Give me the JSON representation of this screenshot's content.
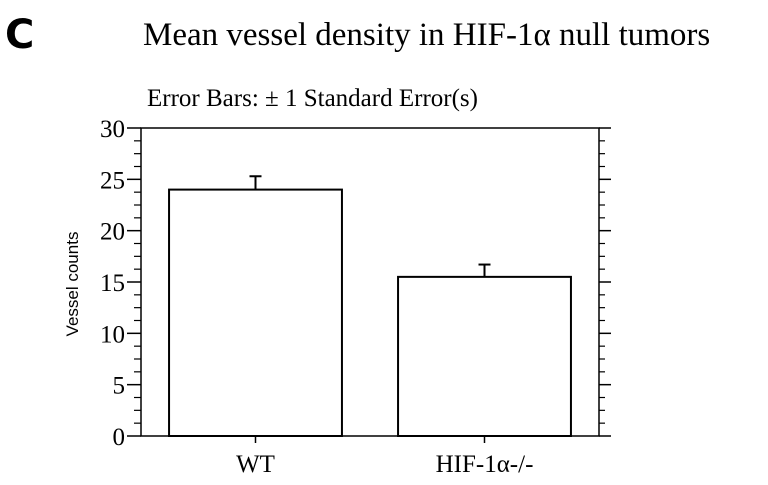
{
  "panel_label": "C",
  "chart_data": {
    "type": "bar",
    "title": "Mean vessel density in HIF-1α null tumors",
    "subtitle": "Error Bars: ± 1 Standard Error(s)",
    "xlabel": "",
    "ylabel": "Vessel counts",
    "categories": [
      "WT",
      "HIF-1α-/-"
    ],
    "values": [
      24.0,
      15.5
    ],
    "error": [
      1.3,
      1.2
    ],
    "ylim": [
      0,
      30
    ],
    "yticks": [
      0,
      5,
      10,
      15,
      20,
      25,
      30
    ],
    "bar_color": "#ffffff",
    "line_color": "#000000",
    "grid": false
  }
}
